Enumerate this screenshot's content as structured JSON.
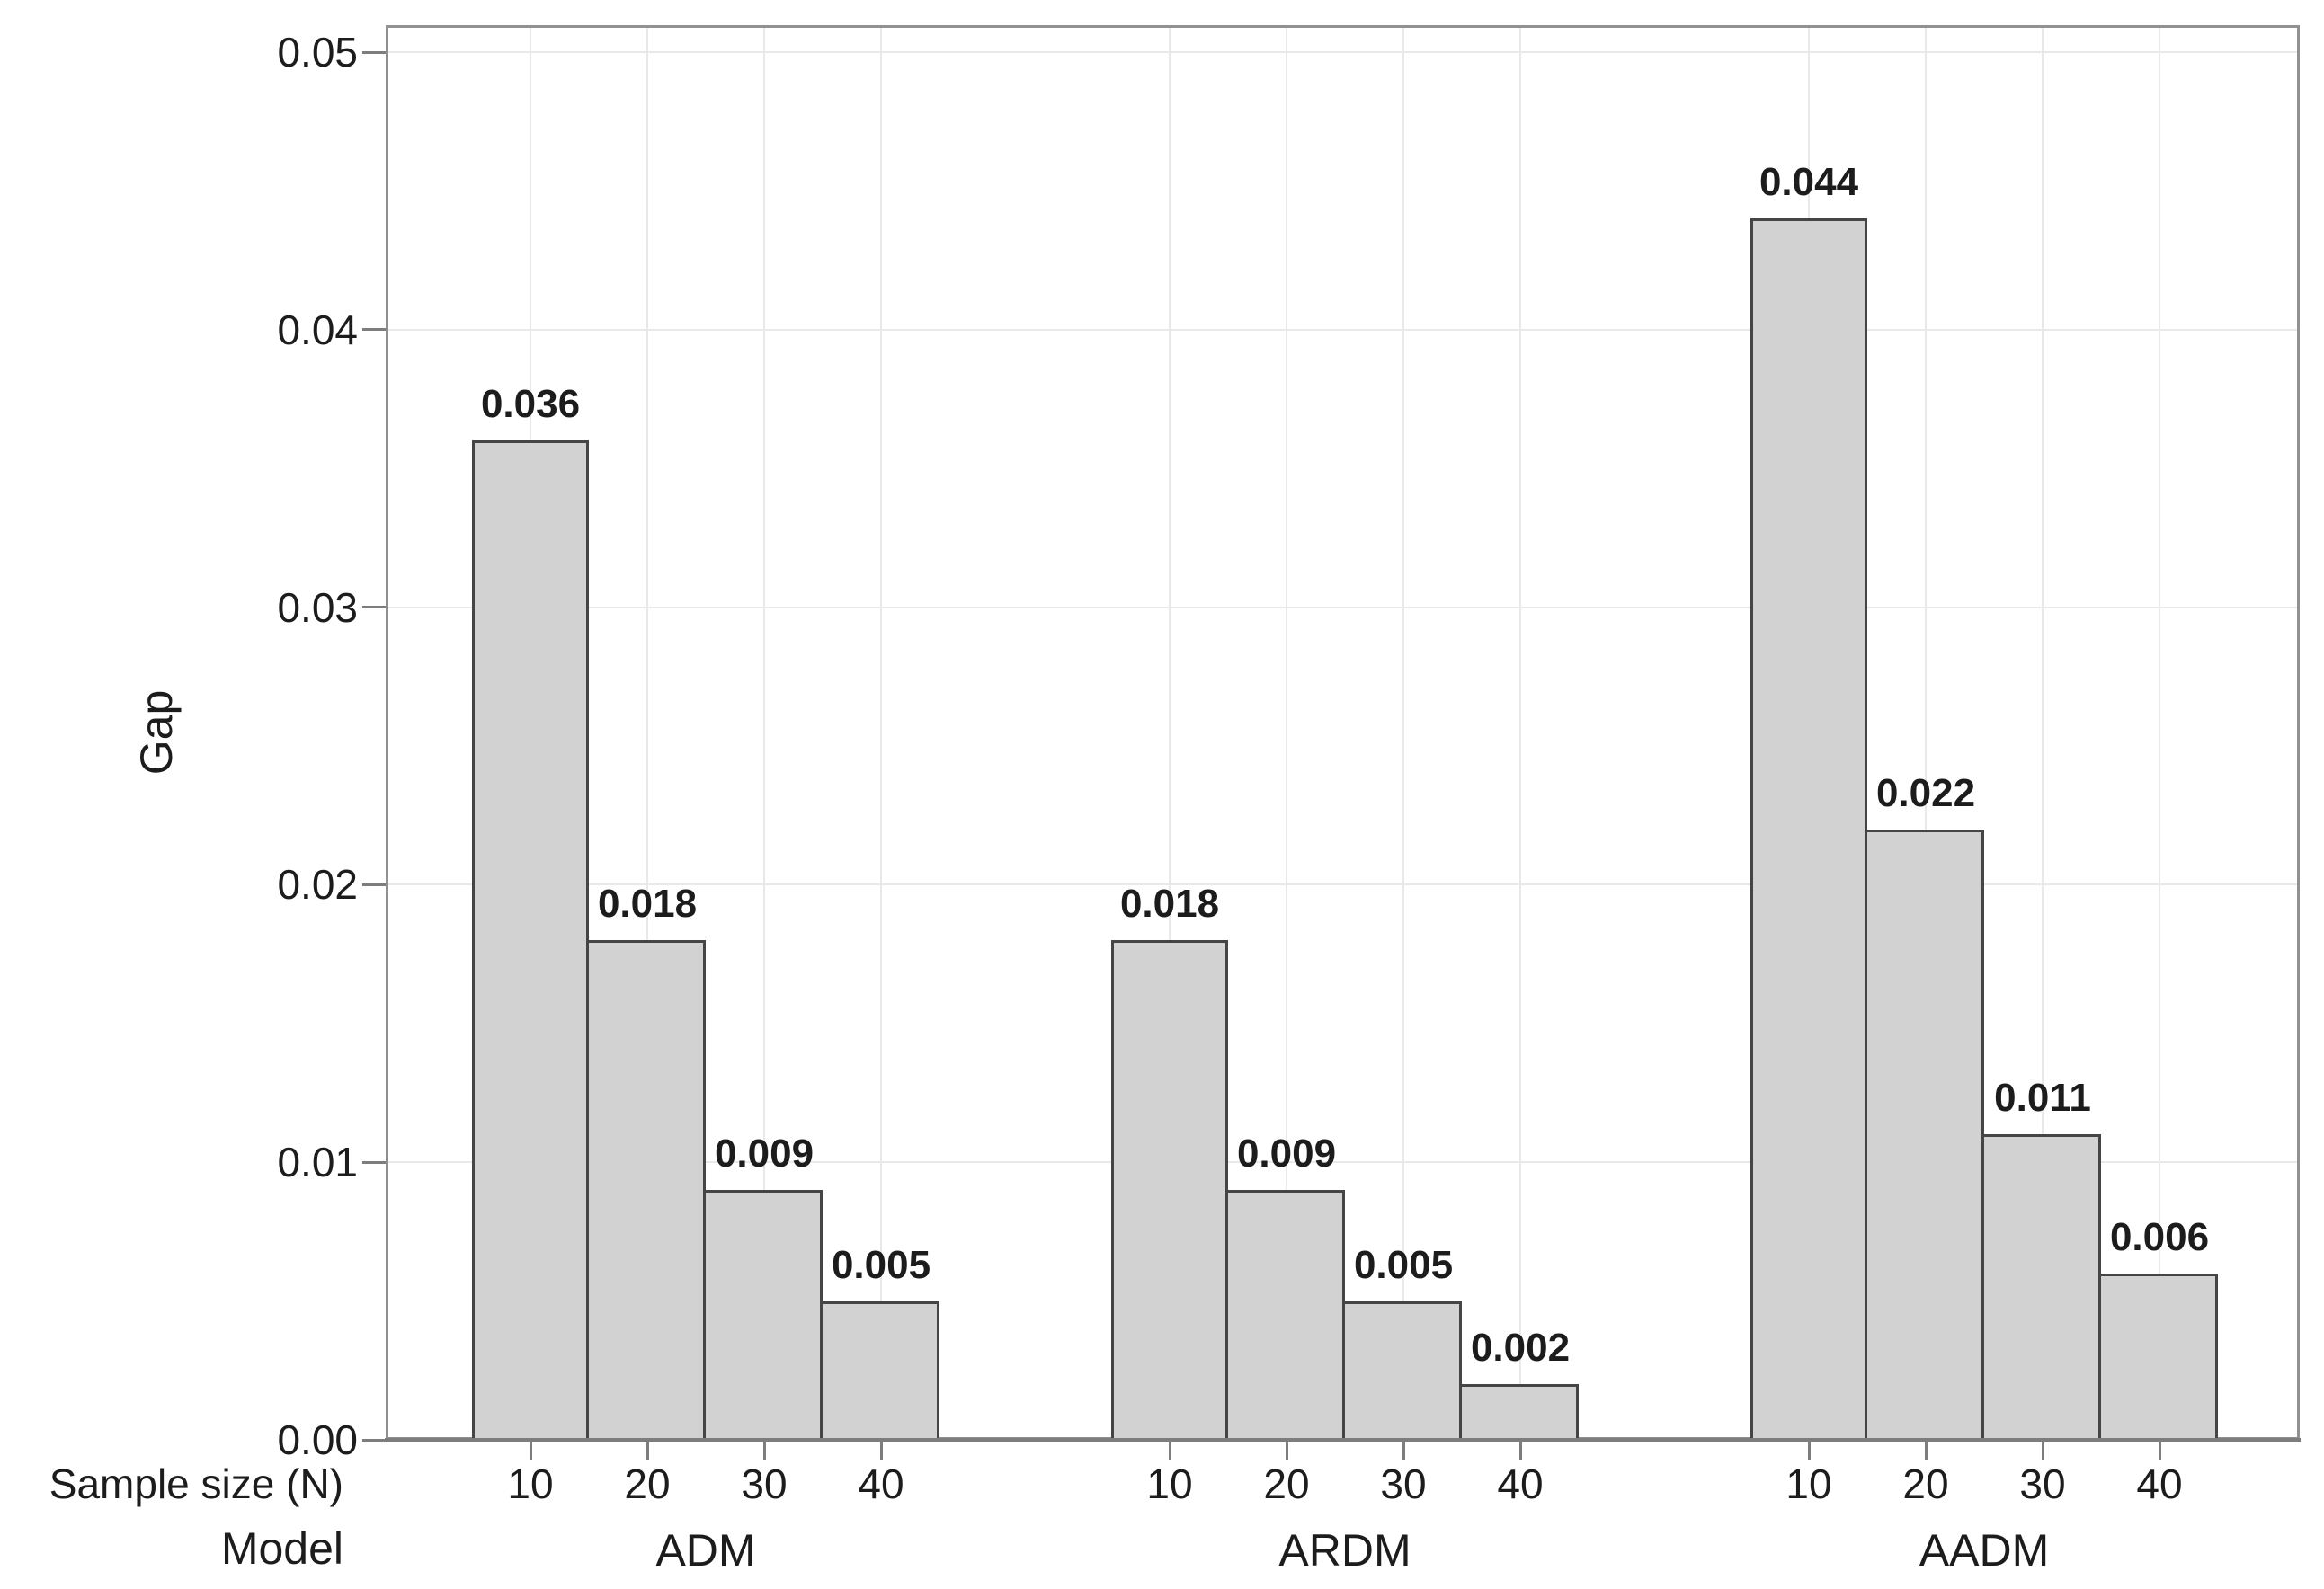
{
  "chart_data": {
    "type": "bar",
    "title": "",
    "ylabel": "Gap",
    "row_headers": {
      "sample_size": "Sample size (N)",
      "model": "Model"
    },
    "ylim": [
      0,
      0.051
    ],
    "yticks": [
      {
        "value": 0.0,
        "label": "0.00"
      },
      {
        "value": 0.01,
        "label": "0.01"
      },
      {
        "value": 0.02,
        "label": "0.02"
      },
      {
        "value": 0.03,
        "label": "0.03"
      },
      {
        "value": 0.04,
        "label": "0.04"
      },
      {
        "value": 0.05,
        "label": "0.05"
      }
    ],
    "grid": "horizontal lines at y ticks, vertical lines at each bar position",
    "legend": "none",
    "groups": [
      {
        "label": "ADM",
        "categories": [
          "10",
          "20",
          "30",
          "40"
        ],
        "values": [
          0.036,
          0.018,
          0.009,
          0.005
        ],
        "value_labels": [
          "0.036",
          "0.018",
          "0.009",
          "0.005"
        ]
      },
      {
        "label": "ARDM",
        "categories": [
          "10",
          "20",
          "30",
          "40"
        ],
        "values": [
          0.018,
          0.009,
          0.005,
          0.002
        ],
        "value_labels": [
          "0.018",
          "0.009",
          "0.005",
          "0.002"
        ]
      },
      {
        "label": "AADM",
        "categories": [
          "10",
          "20",
          "30",
          "40"
        ],
        "values": [
          0.044,
          0.022,
          0.011,
          0.006
        ],
        "value_labels": [
          "0.044",
          "0.022",
          "0.011",
          "0.006"
        ]
      }
    ],
    "colors": {
      "bar_fill": "#d2d2d2",
      "bar_border": "#454545",
      "gridline": "#e9e9e9",
      "plot_border": "#919191",
      "axis_line": "#7d7d7d",
      "text": "#1c1c1c",
      "background": "#ffffff"
    }
  }
}
